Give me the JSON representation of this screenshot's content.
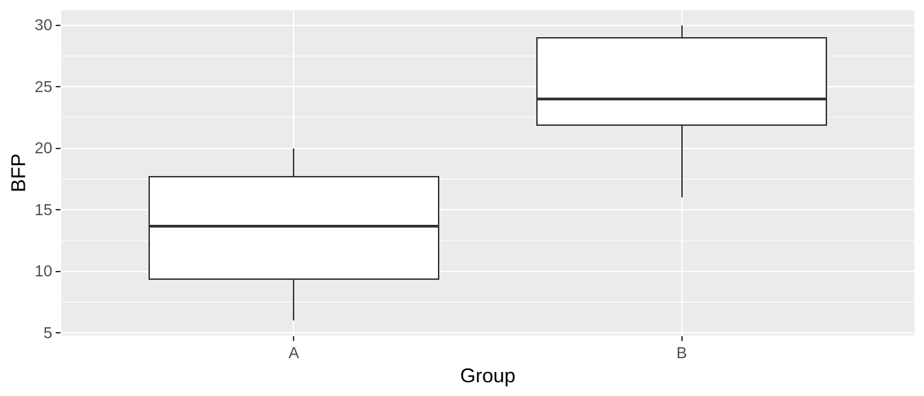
{
  "chart_data": {
    "type": "boxplot",
    "title": "",
    "xlabel": "Group",
    "ylabel": "BFP",
    "categories": [
      "A",
      "B"
    ],
    "series": [
      {
        "name": "A",
        "min": 6,
        "q1": 9.3,
        "median": 13.65,
        "q3": 17.75,
        "max": 20
      },
      {
        "name": "B",
        "min": 16,
        "q1": 21.8,
        "median": 24,
        "q3": 29,
        "max": 30
      }
    ],
    "yticks": [
      5,
      10,
      15,
      20,
      25,
      30
    ],
    "ylim": [
      4.8,
      31.2
    ],
    "x_positions_note": "discrete scale, categories at 1 and 2 with 0.6 expansion, domain 0.4-2.6",
    "box_width_units": 0.75,
    "legend": "none",
    "grid": {
      "major": true,
      "minor": true
    },
    "colors": {
      "panel_background": "#EBEBEB",
      "gridline": "#FFFFFF",
      "box_border": "#333333",
      "box_fill": "#FFFFFF",
      "median_line": "#333333",
      "whisker": "#333333",
      "tick_mark": "#333333",
      "axis_text": "#4D4D4D",
      "axis_title": "#000000",
      "figure_background": "#FFFFFF"
    }
  }
}
